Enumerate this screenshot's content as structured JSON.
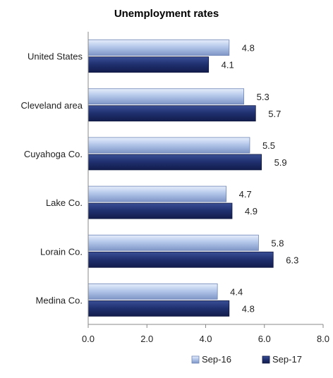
{
  "chart_data": {
    "type": "bar",
    "orientation": "horizontal",
    "title": "Unemployment rates",
    "xlabel": "",
    "ylabel": "",
    "categories": [
      "United States",
      "Cleveland area",
      "Cuyahoga Co.",
      "Lake Co.",
      "Lorain Co.",
      "Medina Co."
    ],
    "series": [
      {
        "name": "Sep-16",
        "values": [
          4.8,
          5.3,
          5.5,
          4.7,
          5.8,
          4.4
        ],
        "color": "#a9bee3"
      },
      {
        "name": "Sep-17",
        "values": [
          4.1,
          5.7,
          5.9,
          4.9,
          6.3,
          4.8
        ],
        "color": "#1f2f6e"
      }
    ],
    "xlim": [
      0,
      8
    ],
    "xticks": [
      "0.0",
      "2.0",
      "4.0",
      "6.0",
      "8.0"
    ],
    "grid": false,
    "legend": "bottom"
  }
}
